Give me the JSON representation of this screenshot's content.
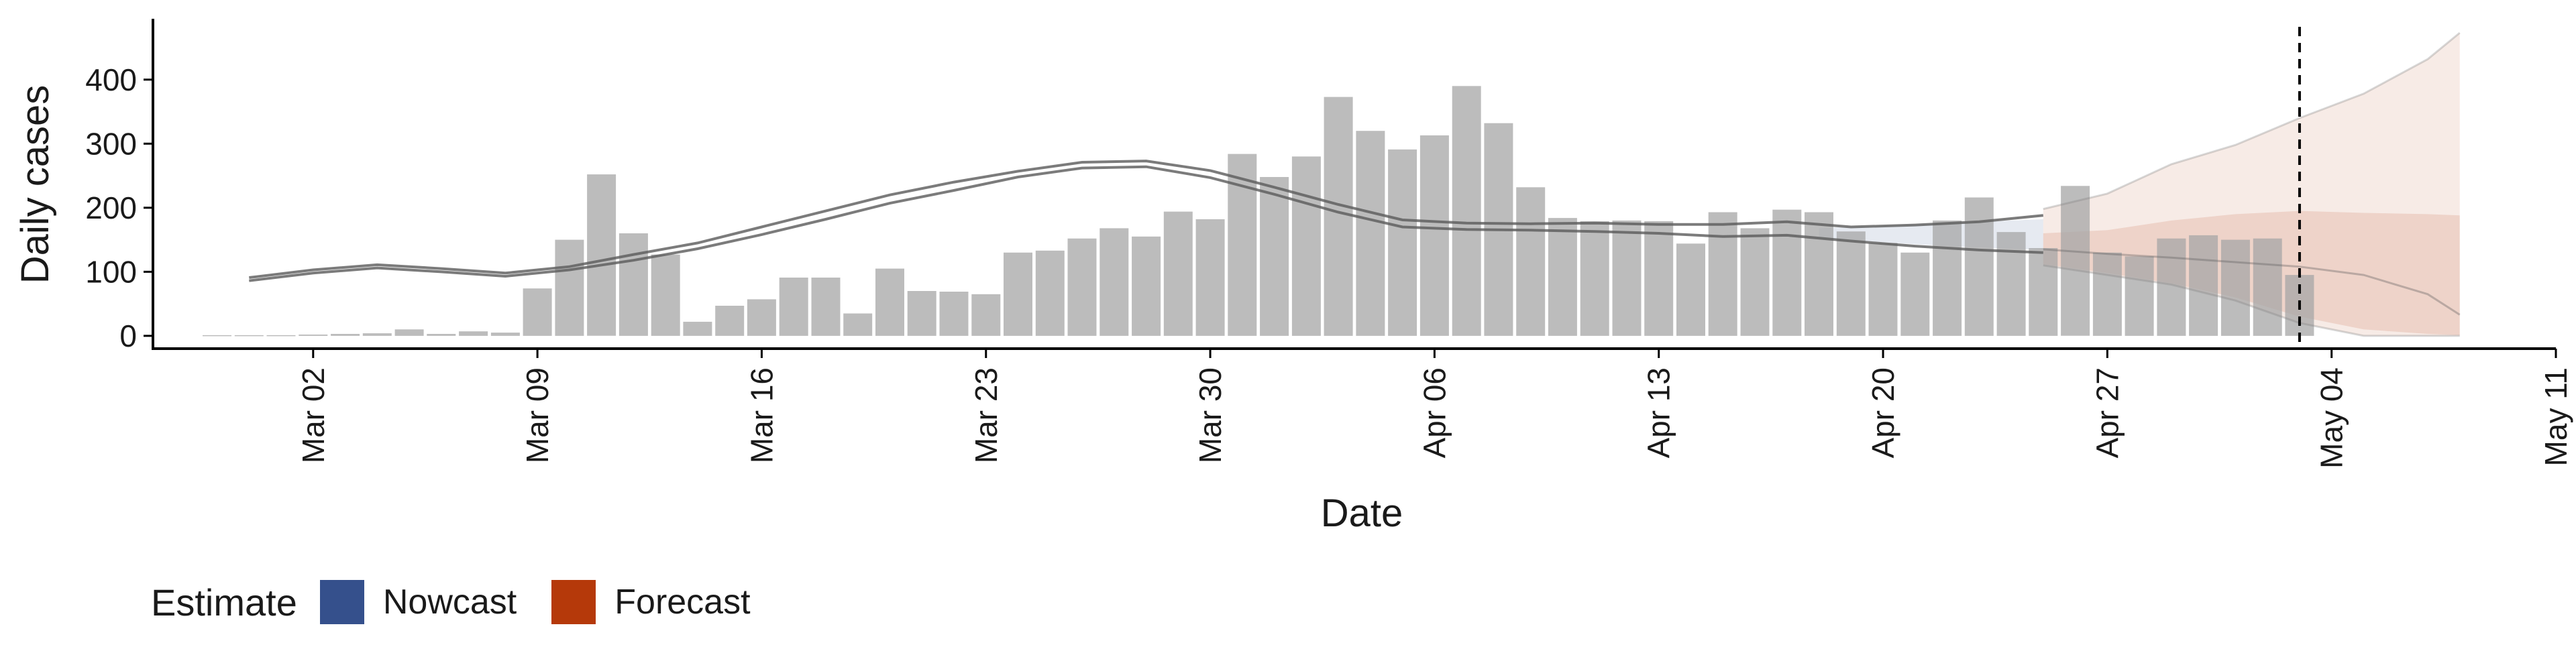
{
  "chart_data": {
    "type": "bar",
    "title": "",
    "xlabel": "Date",
    "ylabel": "Daily cases",
    "xlim": [
      "2020-02-26",
      "2020-05-11"
    ],
    "ylim": [
      -20,
      495
    ],
    "y_ticks": [
      0,
      100,
      200,
      300,
      400
    ],
    "x_ticks": [
      {
        "date": "2020-03-02",
        "label": "Mar 02"
      },
      {
        "date": "2020-03-09",
        "label": "Mar 09"
      },
      {
        "date": "2020-03-16",
        "label": "Mar 16"
      },
      {
        "date": "2020-03-23",
        "label": "Mar 23"
      },
      {
        "date": "2020-03-30",
        "label": "Mar 30"
      },
      {
        "date": "2020-04-06",
        "label": "Apr 06"
      },
      {
        "date": "2020-04-13",
        "label": "Apr 13"
      },
      {
        "date": "2020-04-20",
        "label": "Apr 20"
      },
      {
        "date": "2020-04-27",
        "label": "Apr 27"
      },
      {
        "date": "2020-05-04",
        "label": "May 04"
      },
      {
        "date": "2020-05-11",
        "label": "May 11"
      }
    ],
    "grid": false,
    "legend_position": "bottom-left",
    "vline_date": "2020-05-03",
    "cases": {
      "start_date": "2020-02-28",
      "values": [
        1,
        1,
        1,
        2,
        3,
        4,
        10,
        3,
        7,
        5,
        74,
        150,
        252,
        160,
        127,
        22,
        47,
        57,
        91,
        91,
        35,
        105,
        70,
        69,
        65,
        130,
        133,
        152,
        168,
        155,
        194,
        182,
        284,
        248,
        280,
        373,
        320,
        291,
        313,
        390,
        332,
        232,
        184,
        179,
        180,
        179,
        144,
        193,
        168,
        197,
        193,
        163,
        145,
        130,
        180,
        216,
        162,
        137,
        234,
        130,
        124,
        152,
        157,
        150,
        152,
        95
      ]
    },
    "series": [
      {
        "name": "Nowcast",
        "color": "#35508c",
        "line_dates": [
          "2020-02-29",
          "2020-03-02",
          "2020-03-04",
          "2020-03-06",
          "2020-03-08",
          "2020-03-10",
          "2020-03-12",
          "2020-03-14",
          "2020-03-16",
          "2020-03-18",
          "2020-03-20",
          "2020-03-22",
          "2020-03-24",
          "2020-03-26",
          "2020-03-28",
          "2020-03-30",
          "2020-04-01",
          "2020-04-03",
          "2020-04-05",
          "2020-04-07",
          "2020-04-09",
          "2020-04-11",
          "2020-04-13",
          "2020-04-15",
          "2020-04-17",
          "2020-04-19",
          "2020-04-21",
          "2020-04-23",
          "2020-04-25"
        ],
        "upper": [
          91,
          103,
          111,
          105,
          98,
          108,
          127,
          145,
          170,
          195,
          220,
          240,
          257,
          271,
          273,
          258,
          232,
          205,
          181,
          176,
          175,
          176,
          174,
          174,
          178,
          170,
          173,
          178,
          188
        ],
        "lower": [
          86,
          98,
          106,
          100,
          93,
          103,
          118,
          136,
          158,
          182,
          207,
          227,
          248,
          262,
          264,
          247,
          221,
          193,
          170,
          166,
          165,
          163,
          160,
          155,
          157,
          148,
          140,
          134,
          130
        ],
        "band_dates": [
          "2020-04-18",
          "2020-04-20",
          "2020-04-22",
          "2020-04-25"
        ],
        "band_upper": [
          168,
          172,
          176,
          182
        ],
        "band_lower": [
          152,
          146,
          140,
          134
        ]
      },
      {
        "name": "Forecast",
        "color": "#b5390a",
        "dates": [
          "2020-04-25",
          "2020-04-27",
          "2020-04-29",
          "2020-05-01",
          "2020-05-03",
          "2020-05-05",
          "2020-05-07",
          "2020-05-08"
        ],
        "upper": [
          198,
          222,
          268,
          298,
          340,
          378,
          432,
          473
        ],
        "upper_inner": [
          160,
          165,
          180,
          190,
          195,
          192,
          190,
          188
        ],
        "median": [
          135,
          128,
          122,
          115,
          108,
          95,
          65,
          33
        ],
        "lower_inner": [
          112,
          98,
          82,
          60,
          30,
          10,
          3,
          1
        ],
        "lower": [
          110,
          95,
          80,
          55,
          20,
          0,
          0,
          0
        ]
      }
    ]
  },
  "legend": {
    "title": "Estimate",
    "items": [
      {
        "label": "Nowcast",
        "color": "#35508c"
      },
      {
        "label": "Forecast",
        "color": "#b5390a"
      }
    ]
  }
}
